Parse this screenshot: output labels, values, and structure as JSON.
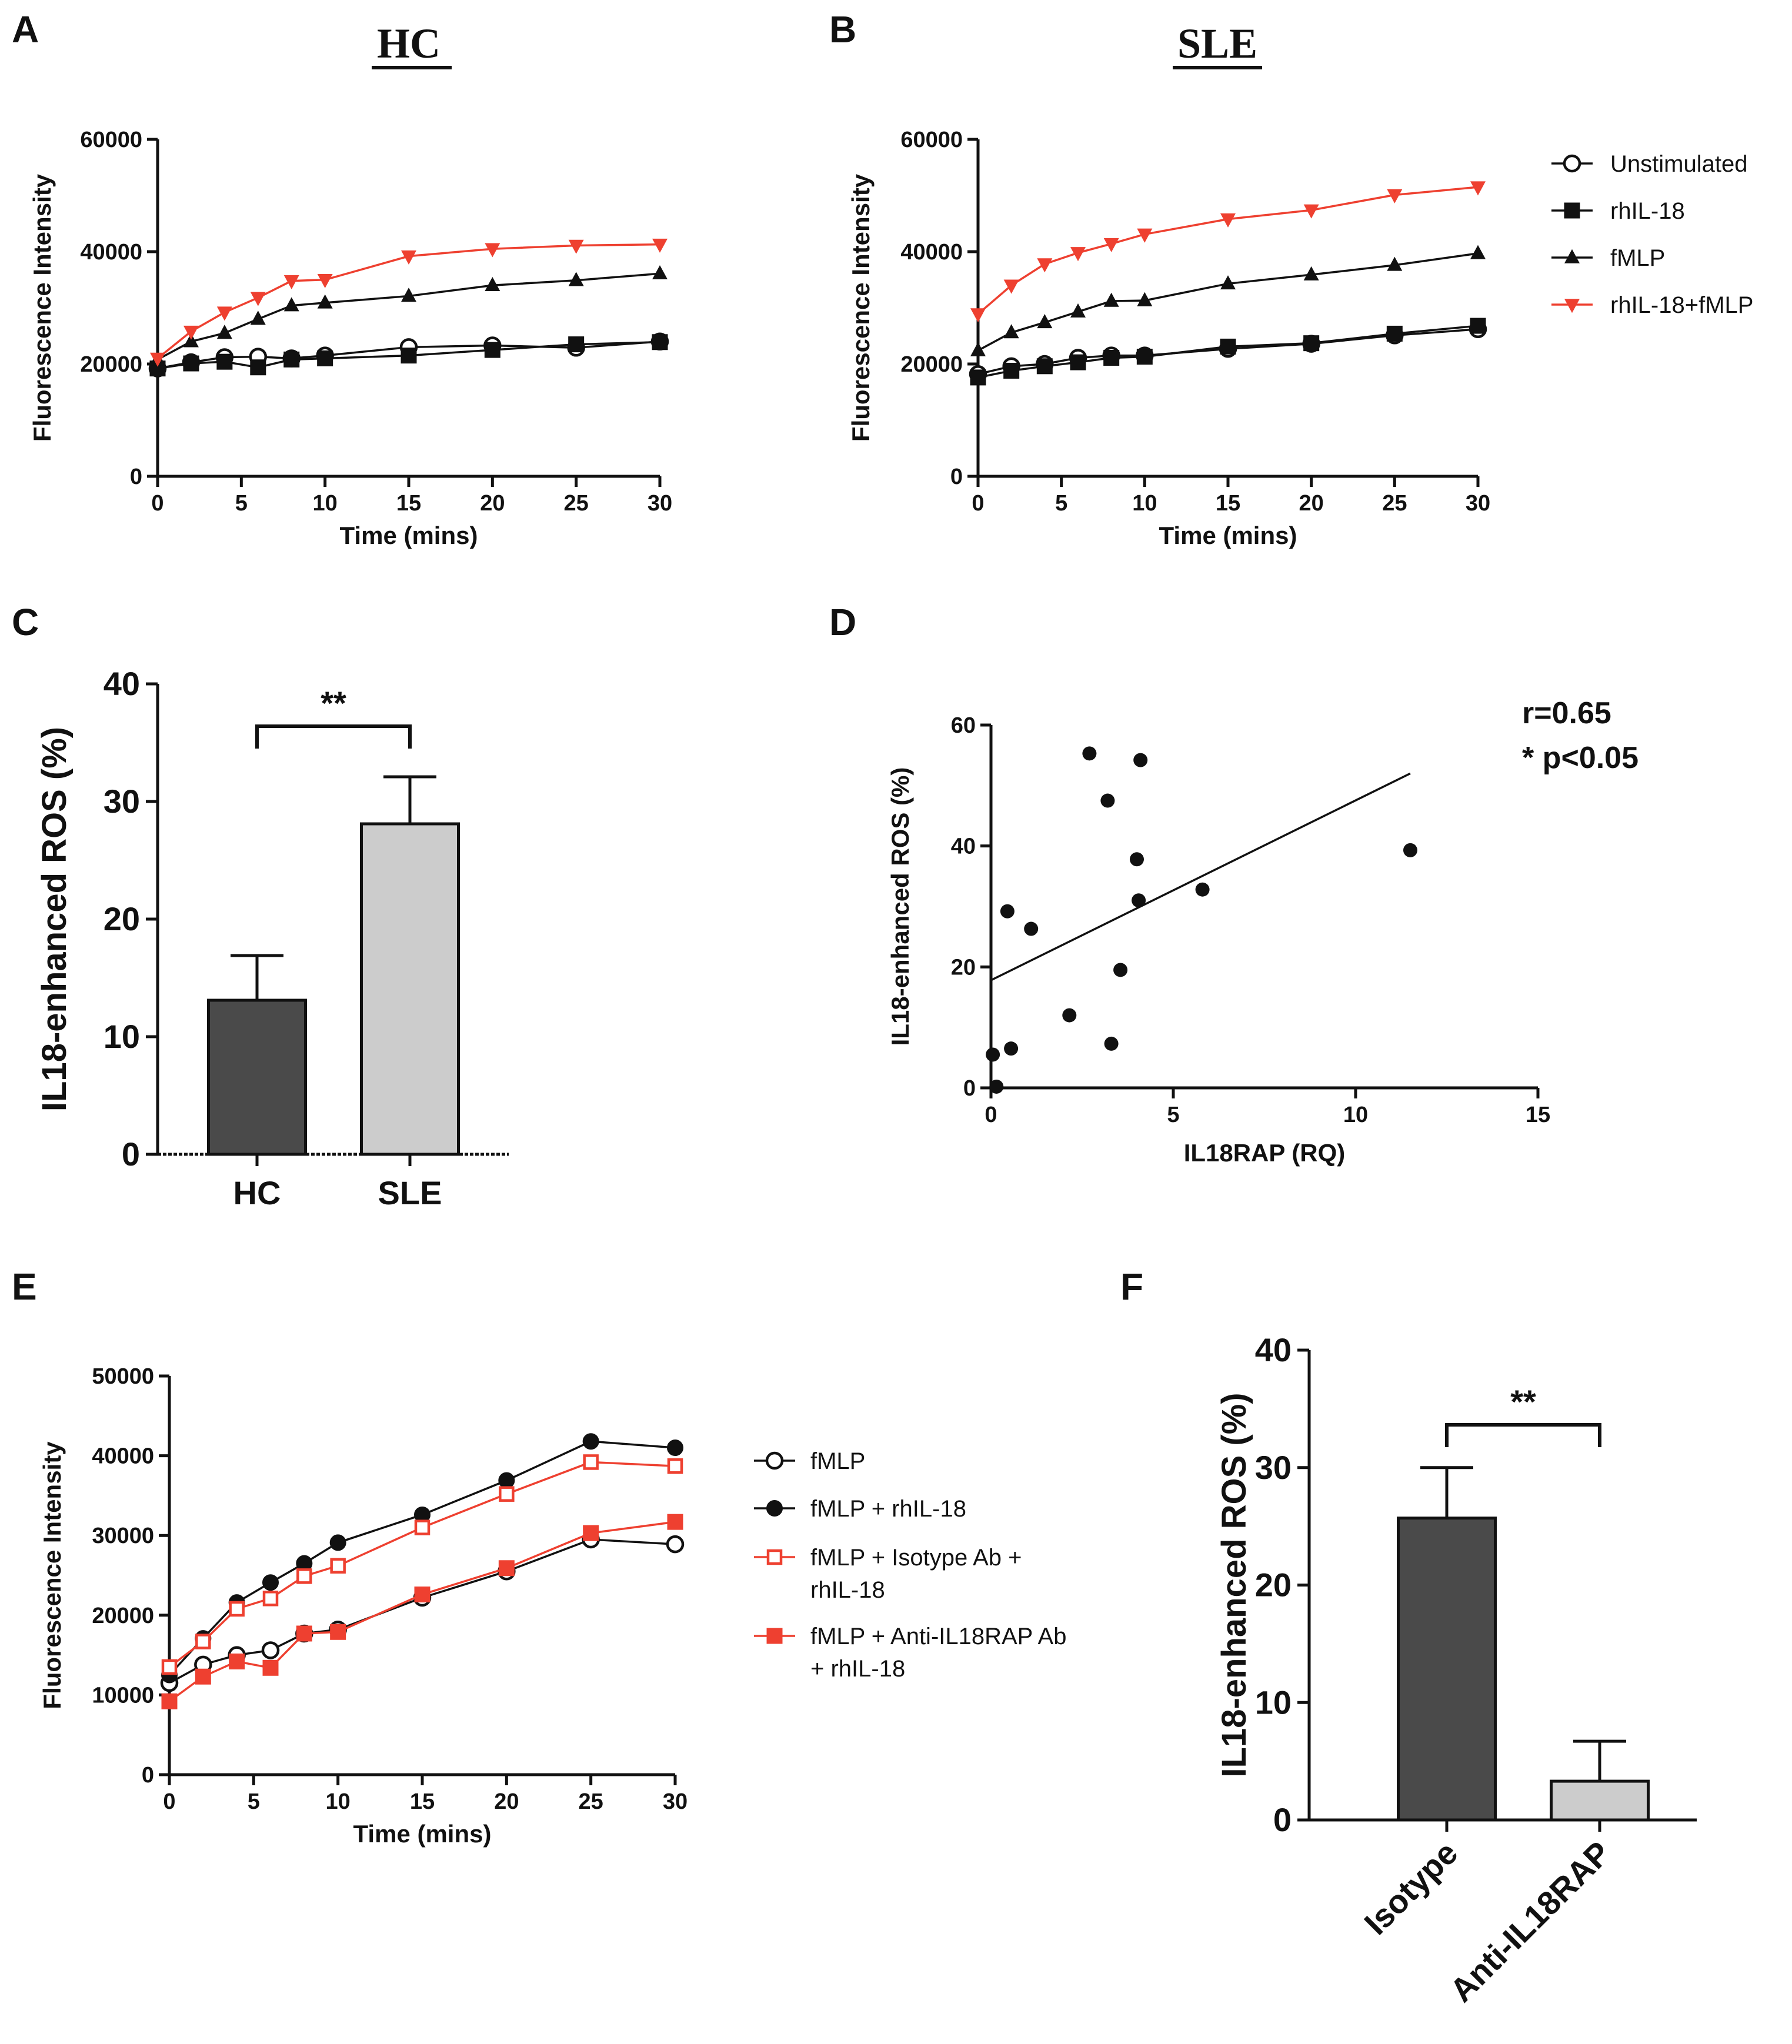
{
  "chart_data": [
    {
      "panel": "A",
      "type": "line",
      "title": "HC",
      "xlabel": "Time (mins)",
      "ylabel": "Fluorescence Intensity",
      "xlim": [
        0,
        30
      ],
      "ylim": [
        0,
        60000
      ],
      "xticks": [
        0,
        5,
        10,
        15,
        20,
        25,
        30
      ],
      "yticks": [
        0,
        20000,
        40000,
        60000
      ],
      "x": [
        0,
        2,
        4,
        6,
        8,
        10,
        15,
        20,
        25,
        30
      ],
      "series": [
        {
          "name": "Unstimulated",
          "marker": "open-circle",
          "color": "#111111",
          "values": [
            19200,
            20300,
            21200,
            21300,
            21000,
            21500,
            23000,
            23300,
            22900,
            24000
          ]
        },
        {
          "name": "rhIL-18",
          "marker": "square",
          "color": "#111111",
          "values": [
            19200,
            20100,
            20400,
            19400,
            20800,
            21000,
            21500,
            22500,
            23500,
            23900
          ]
        },
        {
          "name": "fMLP",
          "marker": "triangle",
          "color": "#111111",
          "values": [
            20800,
            24000,
            25500,
            28000,
            30400,
            30900,
            32100,
            34000,
            34900,
            36100
          ]
        },
        {
          "name": "rhIL-18+fMLP",
          "marker": "inverted-triangle",
          "color": "#ee4030",
          "values": [
            21000,
            25800,
            29200,
            31800,
            34800,
            35000,
            39200,
            40500,
            41100,
            41300
          ]
        }
      ]
    },
    {
      "panel": "B",
      "type": "line",
      "title": "SLE",
      "xlabel": "Time (mins)",
      "ylabel": "Fluorescence Intensity",
      "xlim": [
        0,
        30
      ],
      "ylim": [
        0,
        60000
      ],
      "xticks": [
        0,
        5,
        10,
        15,
        20,
        25,
        30
      ],
      "yticks": [
        0,
        20000,
        40000,
        60000
      ],
      "x": [
        0,
        2,
        4,
        6,
        8,
        10,
        15,
        20,
        25,
        30
      ],
      "legend": [
        "Unstimulated",
        "rhIL-18",
        "fMLP",
        "rhIL-18+fMLP"
      ],
      "series": [
        {
          "name": "Unstimulated",
          "marker": "open-circle",
          "color": "#111111",
          "values": [
            18200,
            19600,
            20000,
            21100,
            21500,
            21500,
            22700,
            23600,
            25100,
            26200
          ]
        },
        {
          "name": "rhIL-18",
          "marker": "square",
          "color": "#111111",
          "values": [
            17600,
            18800,
            19600,
            20300,
            21100,
            21300,
            23100,
            23700,
            25400,
            26800
          ]
        },
        {
          "name": "fMLP",
          "marker": "triangle",
          "color": "#111111",
          "values": [
            22400,
            25600,
            27400,
            29300,
            31200,
            31300,
            34300,
            35900,
            37600,
            39700
          ]
        },
        {
          "name": "rhIL-18+fMLP",
          "marker": "inverted-triangle",
          "color": "#ee4030",
          "values": [
            28900,
            34000,
            37800,
            39800,
            41400,
            43100,
            45800,
            47400,
            50100,
            51500
          ]
        }
      ]
    },
    {
      "panel": "C",
      "type": "bar",
      "ylabel": "IL18-enhanced ROS (%)",
      "ylim": [
        0,
        40
      ],
      "yticks": [
        0,
        10,
        20,
        30,
        40
      ],
      "categories": [
        "HC",
        "SLE"
      ],
      "values": [
        13.1,
        28.1
      ],
      "errors": [
        3.8,
        4.0
      ],
      "colors": [
        "#4a4a4a",
        "#cccccc"
      ],
      "annotation": "**"
    },
    {
      "panel": "D",
      "type": "scatter",
      "xlabel": "IL18RAP (RQ)",
      "ylabel": "IL18-enhanced ROS (%)",
      "xlim": [
        0,
        15
      ],
      "ylim": [
        0,
        60
      ],
      "xticks": [
        0,
        5,
        10,
        15
      ],
      "yticks": [
        0,
        20,
        40,
        60
      ],
      "points": [
        [
          0.05,
          5.5
        ],
        [
          0.15,
          0.2
        ],
        [
          0.45,
          29.2
        ],
        [
          0.55,
          6.5
        ],
        [
          1.1,
          26.3
        ],
        [
          2.15,
          12.0
        ],
        [
          2.7,
          55.3
        ],
        [
          3.2,
          47.5
        ],
        [
          3.3,
          7.3
        ],
        [
          3.55,
          19.5
        ],
        [
          4.0,
          37.8
        ],
        [
          4.05,
          31.0
        ],
        [
          4.1,
          54.2
        ],
        [
          5.8,
          32.8
        ],
        [
          11.5,
          39.3
        ]
      ],
      "fit": {
        "x": [
          0,
          11.5
        ],
        "y": [
          17.8,
          52.0
        ]
      },
      "stats": [
        "r=0.65",
        "* p<0.05"
      ]
    },
    {
      "panel": "E",
      "type": "line",
      "xlabel": "Time (mins)",
      "ylabel": "Fluorescence Intensity",
      "xlim": [
        0,
        30
      ],
      "ylim": [
        0,
        50000
      ],
      "xticks": [
        0,
        5,
        10,
        15,
        20,
        25,
        30
      ],
      "yticks": [
        0,
        10000,
        20000,
        30000,
        40000,
        50000
      ],
      "x": [
        0,
        2,
        4,
        6,
        8,
        10,
        15,
        20,
        25,
        30
      ],
      "series": [
        {
          "name": "fMLP",
          "marker": "open-circle",
          "color": "#111111",
          "values": [
            11500,
            13800,
            15000,
            15600,
            17700,
            18200,
            22200,
            25500,
            29500,
            28900
          ]
        },
        {
          "name": "fMLP + rhIL-18",
          "marker": "filled-circle",
          "color": "#111111",
          "values": [
            12500,
            17100,
            21600,
            24100,
            26500,
            29100,
            32600,
            36900,
            41800,
            41000
          ]
        },
        {
          "name": "fMLP + Isotype Ab + rhIL-18",
          "marker": "open-square",
          "color": "#ee4030",
          "values": [
            13500,
            16700,
            20800,
            22100,
            24900,
            26200,
            31000,
            35200,
            39200,
            38700
          ]
        },
        {
          "name": "fMLP + Anti-IL18RAP Ab + rhIL-18",
          "marker": "filled-square",
          "color": "#ee4030",
          "values": [
            9200,
            12300,
            14200,
            13400,
            17700,
            17900,
            22600,
            25900,
            30300,
            31700
          ]
        }
      ],
      "legend_lines": [
        [
          "fMLP"
        ],
        [
          "fMLP + rhIL-18"
        ],
        [
          "fMLP + Isotype Ab +",
          "rhIL-18"
        ],
        [
          "fMLP + Anti-IL18RAP Ab",
          "+ rhIL-18"
        ]
      ]
    },
    {
      "panel": "F",
      "type": "bar",
      "ylabel": "IL18-enhanced ROS (%)",
      "ylim": [
        0,
        40
      ],
      "yticks": [
        0,
        10,
        20,
        30,
        40
      ],
      "categories": [
        "Isotype",
        "Anti-IL18RAP"
      ],
      "values": [
        25.7,
        3.3
      ],
      "errors": [
        4.3,
        3.4
      ],
      "colors": [
        "#4a4a4a",
        "#cccccc"
      ],
      "annotation": "**"
    }
  ]
}
